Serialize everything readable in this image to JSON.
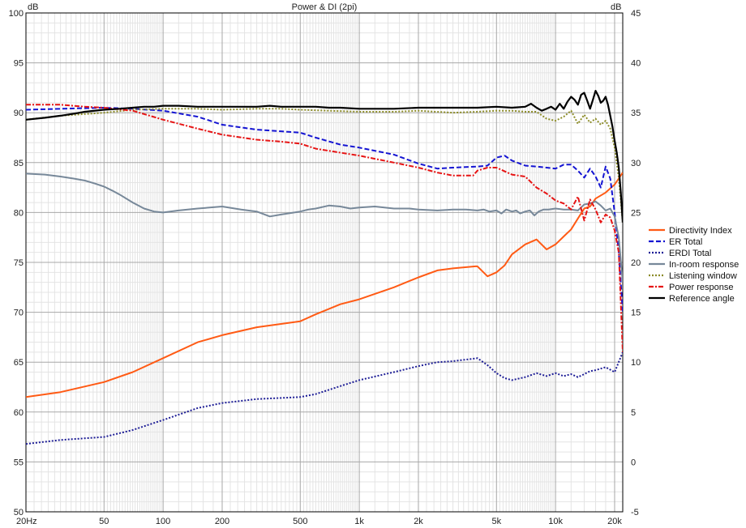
{
  "chart_data": {
    "type": "line",
    "title": "Power & DI (2pi)",
    "x_scale": "log",
    "xlim": [
      20,
      22000
    ],
    "ylim_left": [
      50,
      100
    ],
    "ylim_right": [
      -5,
      45
    ],
    "ylabel_left": "dB",
    "ylabel_right": "dB",
    "grid": true,
    "legend_position": "right",
    "x_tick_labels": [
      {
        "v": 20,
        "t": "20Hz"
      },
      {
        "v": 50,
        "t": "50"
      },
      {
        "v": 100,
        "t": "100"
      },
      {
        "v": 200,
        "t": "200"
      },
      {
        "v": 500,
        "t": "500"
      },
      {
        "v": 1000,
        "t": "1k"
      },
      {
        "v": 2000,
        "t": "2k"
      },
      {
        "v": 5000,
        "t": "5k"
      },
      {
        "v": 10000,
        "t": "10k"
      },
      {
        "v": 20000,
        "t": "20k"
      }
    ],
    "y_left_ticks": [
      "50",
      "55",
      "60",
      "65",
      "70",
      "75",
      "80",
      "85",
      "90",
      "95",
      "100"
    ],
    "y_right_ticks": [
      "-5",
      "0",
      "5",
      "10",
      "15",
      "20",
      "25",
      "30",
      "35",
      "40",
      "45"
    ],
    "series": [
      {
        "name": "Directivity Index",
        "color": "#ff5a14",
        "style": "solid",
        "axis": "right",
        "width": 2,
        "x": [
          20,
          30,
          50,
          70,
          100,
          150,
          200,
          300,
          500,
          600,
          800,
          1000,
          1500,
          2000,
          2500,
          3000,
          3900,
          4000,
          4500,
          5000,
          5500,
          6000,
          7000,
          8000,
          9000,
          10000,
          11000,
          12000,
          13000,
          14000,
          15000,
          16000,
          18000,
          20000,
          22000
        ],
        "y": [
          6.5,
          7,
          8,
          9,
          10.4,
          12,
          12.7,
          13.5,
          14.1,
          14.8,
          15.8,
          16.3,
          17.5,
          18.5,
          19.2,
          19.4,
          19.6,
          19.6,
          18.6,
          19,
          19.7,
          20.8,
          21.8,
          22.3,
          21.3,
          21.8,
          22.6,
          23.3,
          24.4,
          25.4,
          25.6,
          26.4,
          27,
          27.8,
          29
        ]
      },
      {
        "name": "ER Total",
        "color": "#1414d2",
        "style": "dashed",
        "axis": "left",
        "width": 2,
        "x": [
          20,
          30,
          50,
          70,
          100,
          150,
          200,
          300,
          500,
          600,
          800,
          1000,
          1500,
          2000,
          2500,
          3000,
          4000,
          4500,
          5000,
          5500,
          6000,
          7000,
          8000,
          9000,
          10000,
          11000,
          12000,
          13000,
          14000,
          15000,
          16000,
          17000,
          18000,
          19000,
          20000,
          21000,
          22000
        ],
        "y": [
          90.3,
          90.4,
          90.5,
          90.4,
          90.2,
          89.6,
          88.8,
          88.3,
          88,
          87.5,
          86.8,
          86.5,
          85.8,
          84.9,
          84.4,
          84.5,
          84.6,
          84.7,
          85.5,
          85.7,
          85.2,
          84.7,
          84.6,
          84.5,
          84.4,
          84.8,
          84.8,
          84.2,
          83.5,
          84.4,
          83.6,
          82.5,
          84.6,
          83.4,
          80,
          76,
          70
        ]
      },
      {
        "name": "ERDI Total",
        "color": "#1e1e96",
        "style": "dotted",
        "axis": "right",
        "width": 2,
        "x": [
          20,
          30,
          50,
          70,
          100,
          150,
          200,
          300,
          500,
          600,
          800,
          1000,
          1500,
          2000,
          2500,
          3000,
          4000,
          4500,
          5000,
          5500,
          6000,
          7000,
          8000,
          9000,
          10000,
          11000,
          12000,
          13000,
          14000,
          15000,
          16000,
          18000,
          20000,
          22000
        ],
        "y": [
          1.8,
          2.2,
          2.5,
          3.2,
          4.2,
          5.4,
          5.9,
          6.3,
          6.5,
          6.8,
          7.6,
          8.2,
          9,
          9.6,
          10,
          10.1,
          10.4,
          9.7,
          8.9,
          8.4,
          8.2,
          8.5,
          8.9,
          8.6,
          8.9,
          8.6,
          8.8,
          8.5,
          8.8,
          9.1,
          9.2,
          9.5,
          9,
          11
        ]
      },
      {
        "name": "In-room response",
        "color": "#778899",
        "style": "solid",
        "axis": "left",
        "width": 2,
        "x": [
          20,
          25,
          30,
          35,
          40,
          45,
          50,
          55,
          60,
          70,
          80,
          90,
          100,
          120,
          150,
          200,
          250,
          300,
          350,
          400,
          500,
          550,
          600,
          700,
          800,
          900,
          1000,
          1200,
          1500,
          1800,
          2000,
          2500,
          3000,
          3500,
          4000,
          4300,
          4600,
          5000,
          5300,
          5600,
          6000,
          6300,
          6600,
          7000,
          7400,
          7800,
          8200,
          8700,
          9200,
          10000,
          11000,
          12000,
          13000,
          14000,
          15000,
          16000,
          17000,
          18000,
          19000,
          20000,
          21000,
          22000
        ],
        "y": [
          83.9,
          83.8,
          83.6,
          83.4,
          83.2,
          82.9,
          82.6,
          82.2,
          81.8,
          81,
          80.4,
          80.1,
          80,
          80.2,
          80.4,
          80.6,
          80.3,
          80.1,
          79.6,
          79.8,
          80.1,
          80.3,
          80.4,
          80.7,
          80.6,
          80.4,
          80.5,
          80.6,
          80.4,
          80.4,
          80.3,
          80.2,
          80.3,
          80.3,
          80.2,
          80.3,
          80.1,
          80.2,
          79.9,
          80.3,
          80.1,
          80.2,
          79.9,
          80.1,
          80.2,
          79.7,
          80.1,
          80.3,
          80.3,
          80.4,
          80.3,
          80.3,
          80.2,
          80.8,
          80.9,
          81.1,
          80.7,
          80.2,
          80.4,
          79.6,
          77.5,
          73
        ]
      },
      {
        "name": "Listening window",
        "color": "#8c8c28",
        "style": "dotted",
        "axis": "left",
        "width": 2,
        "x": [
          20,
          30,
          50,
          70,
          100,
          150,
          200,
          300,
          400,
          500,
          700,
          1000,
          1500,
          2000,
          3000,
          4000,
          5000,
          6000,
          7000,
          8000,
          9000,
          10000,
          11000,
          12000,
          13000,
          14000,
          15000,
          16000,
          17000,
          18000,
          19000,
          20000,
          21000,
          22000
        ],
        "y": [
          89.3,
          89.7,
          90,
          90.3,
          90.4,
          90.4,
          90.3,
          90.4,
          90.4,
          90.3,
          90.2,
          90.1,
          90.1,
          90.2,
          90,
          90.1,
          90.2,
          90.2,
          90.1,
          90.1,
          89.4,
          89.2,
          89.6,
          90.2,
          88.9,
          89.8,
          89,
          89.4,
          88.8,
          89.2,
          88.4,
          86.5,
          83.5,
          79
        ]
      },
      {
        "name": "Power response",
        "color": "#e61414",
        "style": "dashdot",
        "axis": "left",
        "width": 2,
        "x": [
          20,
          30,
          40,
          50,
          70,
          100,
          150,
          200,
          300,
          400,
          500,
          600,
          800,
          1000,
          1500,
          2000,
          2500,
          3000,
          3800,
          4000,
          4500,
          5000,
          6000,
          7000,
          8000,
          9000,
          10000,
          11000,
          12000,
          13000,
          14000,
          15000,
          16000,
          17000,
          18000,
          19000,
          20000,
          21000,
          22000
        ],
        "y": [
          90.8,
          90.8,
          90.6,
          90.5,
          90.2,
          89.3,
          88.4,
          87.8,
          87.3,
          87.1,
          86.9,
          86.4,
          86,
          85.7,
          85,
          84.5,
          84,
          83.7,
          83.7,
          84.2,
          84.5,
          84.5,
          83.8,
          83.6,
          82.5,
          81.9,
          81.2,
          80.9,
          80.3,
          81.6,
          79.2,
          81.3,
          80.3,
          79,
          79.8,
          79.5,
          78.2,
          76,
          66
        ]
      },
      {
        "name": "Reference angle",
        "color": "#000000",
        "style": "solid",
        "axis": "left",
        "width": 2.2,
        "x": [
          20,
          25,
          30,
          35,
          40,
          50,
          60,
          70,
          80,
          90,
          100,
          120,
          150,
          200,
          250,
          300,
          350,
          400,
          500,
          600,
          700,
          800,
          1000,
          1500,
          2000,
          2500,
          3000,
          4000,
          5000,
          6000,
          7000,
          7500,
          8000,
          8500,
          9000,
          9500,
          10000,
          10500,
          11000,
          11500,
          12000,
          12500,
          13000,
          13500,
          14000,
          14500,
          15000,
          15500,
          16000,
          16500,
          17000,
          17500,
          18000,
          18500,
          19000,
          19500,
          20000,
          20500,
          21000,
          21500,
          22000
        ],
        "y": [
          89.3,
          89.5,
          89.7,
          89.9,
          90.1,
          90.3,
          90.4,
          90.5,
          90.6,
          90.6,
          90.7,
          90.7,
          90.6,
          90.6,
          90.6,
          90.6,
          90.7,
          90.6,
          90.6,
          90.6,
          90.5,
          90.5,
          90.4,
          90.4,
          90.5,
          90.5,
          90.5,
          90.5,
          90.6,
          90.5,
          90.6,
          90.9,
          90.5,
          90.2,
          90.4,
          90.6,
          90.3,
          90.9,
          90.4,
          91.1,
          91.6,
          91.3,
          90.8,
          91.8,
          92,
          91.2,
          90.4,
          91.3,
          92.2,
          91.7,
          91,
          91.2,
          91.6,
          90.8,
          89.7,
          88.6,
          87.2,
          86,
          84.5,
          82,
          79
        ]
      }
    ]
  }
}
